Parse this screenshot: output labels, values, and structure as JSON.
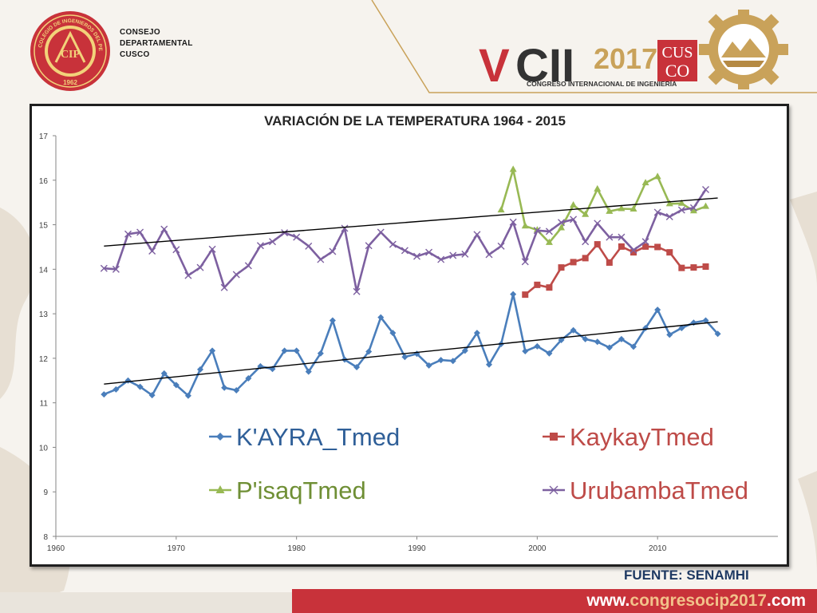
{
  "header": {
    "council_lines": [
      "CONSEJO",
      "DEPARTAMENTAL",
      "CUSCO"
    ],
    "seal": {
      "ring_text": "COLEGIO DE INGENIEROS DEL PERÚ",
      "center_text": "CIP",
      "year": "1962"
    },
    "congress": {
      "edition_prefix": "V",
      "edition_suffix": "CII",
      "year": "2017",
      "city_top": "CUS",
      "city_bottom": "CO",
      "tagline": "CONGRESO INTERNACIONAL DE INGENIERÍA"
    }
  },
  "source": "FUENTE: SENAMHI",
  "footer": {
    "website_pre": "www.",
    "website_mid": "congresocip",
    "website_year": "2017",
    "website_post": ".com"
  },
  "colors": {
    "kayra": "#4a7ebb",
    "kaykay": "#be4b48",
    "pisaq": "#98b954",
    "urubamba": "#7d60a0",
    "trend": "#000000",
    "brand_red": "#c8323a",
    "brand_gold": "#c9a25a"
  },
  "chart_data": {
    "type": "line",
    "title": "VARIACIÓN DE LA TEMPERATURA 1964 - 2015",
    "xlabel": "",
    "ylabel": "",
    "xlim": [
      1960,
      2020
    ],
    "ylim": [
      8,
      17
    ],
    "xticks": [
      1960,
      1970,
      1980,
      1990,
      2000,
      2010
    ],
    "yticks": [
      8,
      9,
      10,
      11,
      12,
      13,
      14,
      15,
      16,
      17
    ],
    "grid": false,
    "legend_position": "bottom-inside",
    "series": [
      {
        "name": "K'AYRA_Tmed",
        "color": "#4a7ebb",
        "marker": "diamond",
        "points": [
          [
            1964,
            11.19
          ],
          [
            1965,
            11.3
          ],
          [
            1966,
            11.5
          ],
          [
            1967,
            11.36
          ],
          [
            1968,
            11.17
          ],
          [
            1969,
            11.66
          ],
          [
            1970,
            11.4
          ],
          [
            1971,
            11.16
          ],
          [
            1972,
            11.75
          ],
          [
            1973,
            12.17
          ],
          [
            1974,
            11.34
          ],
          [
            1975,
            11.28
          ],
          [
            1976,
            11.55
          ],
          [
            1977,
            11.82
          ],
          [
            1978,
            11.76
          ],
          [
            1979,
            12.17
          ],
          [
            1980,
            12.17
          ],
          [
            1981,
            11.7
          ],
          [
            1982,
            12.11
          ],
          [
            1983,
            12.85
          ],
          [
            1984,
            11.97
          ],
          [
            1985,
            11.8
          ],
          [
            1986,
            12.15
          ],
          [
            1987,
            12.92
          ],
          [
            1988,
            12.57
          ],
          [
            1989,
            12.03
          ],
          [
            1990,
            12.1
          ],
          [
            1991,
            11.84
          ],
          [
            1992,
            11.96
          ],
          [
            1993,
            11.94
          ],
          [
            1994,
            12.17
          ],
          [
            1995,
            12.57
          ],
          [
            1996,
            11.86
          ],
          [
            1997,
            12.32
          ],
          [
            1998,
            13.44
          ],
          [
            1999,
            12.16
          ],
          [
            2000,
            12.27
          ],
          [
            2001,
            12.11
          ],
          [
            2002,
            12.41
          ],
          [
            2003,
            12.63
          ],
          [
            2004,
            12.43
          ],
          [
            2005,
            12.37
          ],
          [
            2006,
            12.24
          ],
          [
            2007,
            12.43
          ],
          [
            2008,
            12.26
          ],
          [
            2009,
            12.68
          ],
          [
            2010,
            13.09
          ],
          [
            2011,
            12.53
          ],
          [
            2012,
            12.68
          ],
          [
            2013,
            12.8
          ],
          [
            2014,
            12.85
          ],
          [
            2015,
            12.55
          ]
        ]
      },
      {
        "name": "KaykayTmed",
        "color": "#be4b48",
        "marker": "square",
        "points": [
          [
            1999,
            13.43
          ],
          [
            2000,
            13.65
          ],
          [
            2001,
            13.59
          ],
          [
            2002,
            14.04
          ],
          [
            2003,
            14.16
          ],
          [
            2004,
            14.25
          ],
          [
            2005,
            14.56
          ],
          [
            2006,
            14.15
          ],
          [
            2007,
            14.51
          ],
          [
            2008,
            14.38
          ],
          [
            2009,
            14.51
          ],
          [
            2010,
            14.5
          ],
          [
            2011,
            14.38
          ],
          [
            2012,
            14.03
          ],
          [
            2013,
            14.04
          ],
          [
            2014,
            14.06
          ]
        ]
      },
      {
        "name": "P'isaqTmed",
        "color": "#98b954",
        "marker": "triangle",
        "points": [
          [
            1997,
            15.33
          ],
          [
            1998,
            16.24
          ],
          [
            1999,
            14.97
          ],
          [
            2000,
            14.88
          ],
          [
            2001,
            14.6
          ],
          [
            2002,
            14.93
          ],
          [
            2003,
            15.44
          ],
          [
            2004,
            15.23
          ],
          [
            2005,
            15.8
          ],
          [
            2006,
            15.3
          ],
          [
            2007,
            15.36
          ],
          [
            2008,
            15.35
          ],
          [
            2009,
            15.94
          ],
          [
            2010,
            16.08
          ],
          [
            2011,
            15.47
          ],
          [
            2012,
            15.48
          ],
          [
            2013,
            15.31
          ],
          [
            2014,
            15.41
          ]
        ]
      },
      {
        "name": "UrubambaTmed",
        "color": "#7d60a0",
        "marker": "x",
        "points": [
          [
            1964,
            14.02
          ],
          [
            1965,
            14.0
          ],
          [
            1966,
            14.79
          ],
          [
            1967,
            14.83
          ],
          [
            1968,
            14.41
          ],
          [
            1969,
            14.9
          ],
          [
            1970,
            14.44
          ],
          [
            1971,
            13.86
          ],
          [
            1972,
            14.04
          ],
          [
            1973,
            14.45
          ],
          [
            1974,
            13.59
          ],
          [
            1975,
            13.88
          ],
          [
            1976,
            14.08
          ],
          [
            1977,
            14.53
          ],
          [
            1978,
            14.62
          ],
          [
            1979,
            14.82
          ],
          [
            1980,
            14.72
          ],
          [
            1981,
            14.52
          ],
          [
            1982,
            14.22
          ],
          [
            1983,
            14.4
          ],
          [
            1984,
            14.92
          ],
          [
            1985,
            13.5
          ],
          [
            1986,
            14.53
          ],
          [
            1987,
            14.83
          ],
          [
            1988,
            14.56
          ],
          [
            1989,
            14.42
          ],
          [
            1990,
            14.29
          ],
          [
            1991,
            14.38
          ],
          [
            1992,
            14.22
          ],
          [
            1993,
            14.31
          ],
          [
            1994,
            14.34
          ],
          [
            1995,
            14.78
          ],
          [
            1996,
            14.33
          ],
          [
            1997,
            14.52
          ],
          [
            1998,
            15.06
          ],
          [
            1999,
            14.17
          ],
          [
            2000,
            14.87
          ],
          [
            2001,
            14.85
          ],
          [
            2002,
            15.05
          ],
          [
            2003,
            15.12
          ],
          [
            2004,
            14.62
          ],
          [
            2005,
            15.03
          ],
          [
            2006,
            14.72
          ],
          [
            2007,
            14.72
          ],
          [
            2008,
            14.43
          ],
          [
            2009,
            14.62
          ],
          [
            2010,
            15.28
          ],
          [
            2011,
            15.18
          ],
          [
            2012,
            15.33
          ],
          [
            2013,
            15.38
          ],
          [
            2014,
            15.79
          ]
        ]
      }
    ],
    "trendlines": [
      {
        "series": "K'AYRA_Tmed",
        "from": [
          1964,
          11.42
        ],
        "to": [
          2015,
          12.82
        ]
      },
      {
        "series": "UrubambaTmed",
        "from": [
          1964,
          14.52
        ],
        "to": [
          2015,
          15.6
        ]
      }
    ]
  }
}
